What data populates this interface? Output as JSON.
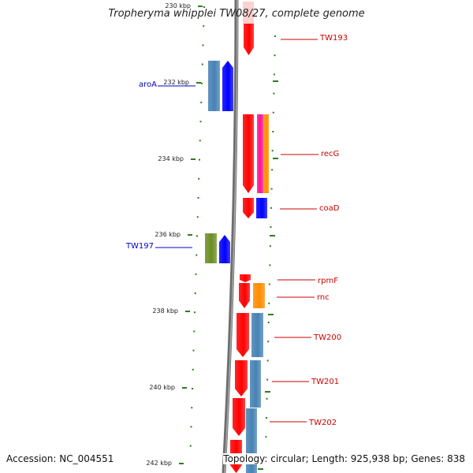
{
  "title": "Tropheryma whipplei TW08/27, complete genome",
  "footer": {
    "accession": "Accession: NC_004551",
    "topology": "Topology: circular; Length: 925,938 bp; Genes: 838"
  },
  "colors": {
    "backbone": "#808080",
    "tick": "#2e7d1e",
    "red": "#ff0000",
    "blue": "#0000ff",
    "steel": "#4682b4",
    "orange": "#ff8c00",
    "magenta": "#ff1493",
    "green": "#6b8e23",
    "label_forward": "#cc0000",
    "label_reverse": "#0000cc"
  },
  "scale": {
    "ticks": [
      "230 kbp",
      "232 kbp",
      "234 kbp",
      "236 kbp",
      "238 kbp",
      "240 kbp",
      "242 kbp"
    ]
  },
  "genes": [
    {
      "label": "TW193",
      "strand": "forward",
      "color": "red"
    },
    {
      "label": "aroA",
      "strand": "reverse",
      "color": "blue"
    },
    {
      "label": "recG",
      "strand": "forward",
      "color": "red"
    },
    {
      "label": "coaD",
      "strand": "forward",
      "color": "red"
    },
    {
      "label": "TW197",
      "strand": "reverse",
      "color": "green"
    },
    {
      "label": "rpmF",
      "strand": "forward",
      "color": "red"
    },
    {
      "label": "rnc",
      "strand": "forward",
      "color": "red"
    },
    {
      "label": "TW200",
      "strand": "forward",
      "color": "red"
    },
    {
      "label": "TW201",
      "strand": "forward",
      "color": "red"
    },
    {
      "label": "TW202",
      "strand": "forward",
      "color": "red"
    }
  ]
}
